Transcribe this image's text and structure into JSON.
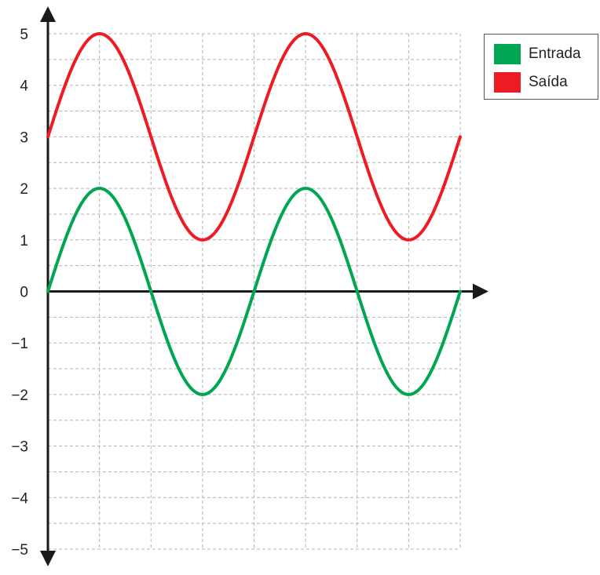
{
  "chart_data": {
    "type": "line",
    "title": "",
    "xlabel": "",
    "ylabel": "",
    "ylim": [
      -5,
      5
    ],
    "xlim": [
      0,
      8
    ],
    "y_ticks": [
      "5",
      "4",
      "3",
      "2",
      "1",
      "0",
      "−1",
      "−2",
      "−3",
      "−4",
      "−5"
    ],
    "x_ticks_labeled": false,
    "grid": true,
    "legend_position": "top-right",
    "series": [
      {
        "name": "Entrada",
        "color": "#00A651",
        "x": [
          0,
          0.5,
          1,
          1.5,
          2,
          2.5,
          3,
          3.5,
          4,
          4.5,
          5,
          5.5,
          6,
          6.5,
          7,
          7.5,
          8
        ],
        "values": [
          0,
          1.41,
          2,
          1.41,
          0,
          -1.41,
          -2,
          -1.41,
          0,
          1.41,
          2,
          1.41,
          0,
          -1.41,
          -2,
          -1.41,
          0
        ]
      },
      {
        "name": "Saída",
        "color": "#ED1C24",
        "x": [
          0,
          0.5,
          1,
          1.5,
          2,
          2.5,
          3,
          3.5,
          4,
          4.5,
          5,
          5.5,
          6,
          6.5,
          7,
          7.5,
          8
        ],
        "values": [
          3,
          4.41,
          5,
          4.41,
          3,
          1.59,
          1,
          1.59,
          3,
          4.41,
          5,
          4.41,
          3,
          1.59,
          1,
          1.59,
          3
        ]
      }
    ]
  },
  "legend": {
    "items": [
      {
        "label": "Entrada",
        "color": "#00A651"
      },
      {
        "label": "Saída",
        "color": "#ED1C24"
      }
    ]
  }
}
